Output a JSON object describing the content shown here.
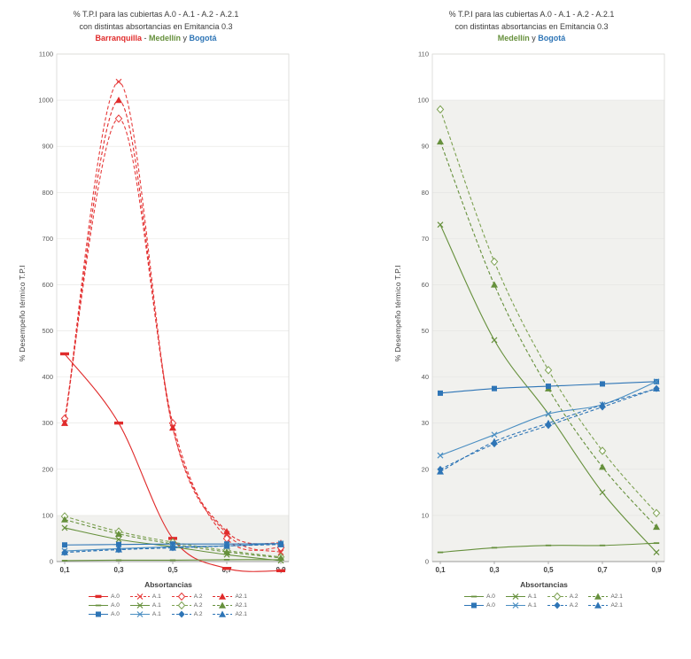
{
  "chart_data": [
    {
      "type": "line",
      "title": "% T.P.I para las cubiertas A.0 - A.1 - A.2 - A.2.1",
      "subtitle": "con distintas absortancias en Emitancia 0.3",
      "cities_line": [
        {
          "label": "Barranquilla",
          "color": "#e02b2b",
          "bold": true
        },
        {
          "label": " - ",
          "color": "#3b3b3b",
          "bold": false
        },
        {
          "label": "Medellín",
          "color": "#66903c",
          "bold": true
        },
        {
          "label": " y ",
          "color": "#3b3b3b",
          "bold": false
        },
        {
          "label": "Bogotá",
          "color": "#2e75b6",
          "bold": true
        }
      ],
      "ylabel": "% Desempeño térmico T.P.I",
      "xlabel": "Absortancias",
      "categories": [
        "0,1",
        "0,3",
        "0,5",
        "0,7",
        "0,9"
      ],
      "ylim": [
        0,
        1100
      ],
      "ytick_step": 100,
      "shade_below": 100,
      "grid": true,
      "legend_position": "bottom",
      "series": [
        {
          "name": "A.0",
          "city": "Barranquilla",
          "color": "#e02b2b",
          "dash": "solid",
          "marker": "dash-big",
          "values": [
            450,
            300,
            50,
            -15,
            -20
          ]
        },
        {
          "name": "A.1",
          "city": "Barranquilla",
          "color": "#e63a3a",
          "dash": "dash",
          "marker": "x",
          "values": [
            300,
            1040,
            290,
            60,
            20
          ]
        },
        {
          "name": "A.2",
          "city": "Barranquilla",
          "color": "#e63a3a",
          "dash": "dash",
          "marker": "diamond-open",
          "values": [
            310,
            960,
            300,
            50,
            30
          ]
        },
        {
          "name": "A2.1",
          "city": "Barranquilla",
          "color": "#e02b2b",
          "dash": "dash",
          "marker": "triangle",
          "values": [
            300,
            1000,
            290,
            65,
            40
          ]
        },
        {
          "name": "A.0",
          "city": "Medellín",
          "color": "#66903c",
          "dash": "solid",
          "marker": "dash",
          "values": [
            2,
            3,
            3,
            4,
            4
          ]
        },
        {
          "name": "A.1",
          "city": "Medellín",
          "color": "#66903c",
          "dash": "solid",
          "marker": "x",
          "values": [
            73,
            48,
            32,
            15,
            2
          ]
        },
        {
          "name": "A.2",
          "city": "Medellín",
          "color": "#7da152",
          "dash": "dash",
          "marker": "diamond-open",
          "values": [
            98,
            65,
            42,
            24,
            10
          ]
        },
        {
          "name": "A2.1",
          "city": "Medellín",
          "color": "#66903c",
          "dash": "dash",
          "marker": "triangle",
          "values": [
            91,
            60,
            38,
            21,
            8
          ]
        },
        {
          "name": "A.0",
          "city": "Bogotá",
          "color": "#2e75b6",
          "dash": "solid",
          "marker": "square",
          "values": [
            36,
            37,
            38,
            38,
            39
          ]
        },
        {
          "name": "A.1",
          "city": "Bogotá",
          "color": "#4a8ec2",
          "dash": "solid",
          "marker": "x",
          "values": [
            23,
            28,
            32,
            34,
            39
          ]
        },
        {
          "name": "A.2",
          "city": "Bogotá",
          "color": "#2e75b6",
          "dash": "dash",
          "marker": "diamond",
          "values": [
            20,
            26,
            30,
            34,
            38
          ]
        },
        {
          "name": "A2.1",
          "city": "Bogotá",
          "color": "#2e75b6",
          "dash": "dash",
          "marker": "triangle",
          "values": [
            20,
            26,
            30,
            34,
            37
          ]
        }
      ]
    },
    {
      "type": "line",
      "title": "% T.P.I para las cubiertas A.0 - A.1 - A.2 - A.2.1",
      "subtitle": "con distintas absortancias en Emitancia 0.3",
      "cities_line": [
        {
          "label": "Medellín",
          "color": "#66903c",
          "bold": true
        },
        {
          "label": " y ",
          "color": "#3b3b3b",
          "bold": false
        },
        {
          "label": "Bogotá",
          "color": "#2e75b6",
          "bold": true
        }
      ],
      "ylabel": "% Desempeño térmico T.P.I",
      "xlabel": "Absortancias",
      "categories": [
        "0,1",
        "0,3",
        "0,5",
        "0,7",
        "0,9"
      ],
      "ylim": [
        0,
        110
      ],
      "ytick_step": 10,
      "shade_below": 100,
      "grid": true,
      "legend_position": "bottom",
      "series": [
        {
          "name": "A.0",
          "city": "Medellín",
          "color": "#66903c",
          "dash": "solid",
          "marker": "dash",
          "values": [
            2,
            3,
            3.5,
            3.5,
            4
          ]
        },
        {
          "name": "A.1",
          "city": "Medellín",
          "color": "#66903c",
          "dash": "solid",
          "marker": "x",
          "values": [
            73,
            48,
            32,
            15,
            2
          ]
        },
        {
          "name": "A.2",
          "city": "Medellín",
          "color": "#7da152",
          "dash": "dash",
          "marker": "diamond-open",
          "values": [
            98,
            65,
            41.5,
            24,
            10.5
          ]
        },
        {
          "name": "A2.1",
          "city": "Medellín",
          "color": "#66903c",
          "dash": "dash",
          "marker": "triangle",
          "values": [
            91,
            60,
            37.5,
            20.5,
            7.5
          ]
        },
        {
          "name": "A.0",
          "city": "Bogotá",
          "color": "#2e75b6",
          "dash": "solid",
          "marker": "square",
          "values": [
            36.5,
            37.5,
            38,
            38.5,
            39
          ]
        },
        {
          "name": "A.1",
          "city": "Bogotá",
          "color": "#4a8ec2",
          "dash": "solid",
          "marker": "x",
          "values": [
            23,
            27.5,
            32,
            34,
            39
          ]
        },
        {
          "name": "A.2",
          "city": "Bogotá",
          "color": "#2e75b6",
          "dash": "dash",
          "marker": "diamond",
          "values": [
            20,
            25.5,
            29.5,
            33.5,
            37.5
          ]
        },
        {
          "name": "A2.1",
          "city": "Bogotá",
          "color": "#2e75b6",
          "dash": "dash",
          "marker": "triangle",
          "values": [
            19.5,
            26,
            30,
            34,
            37.5
          ]
        }
      ]
    }
  ]
}
